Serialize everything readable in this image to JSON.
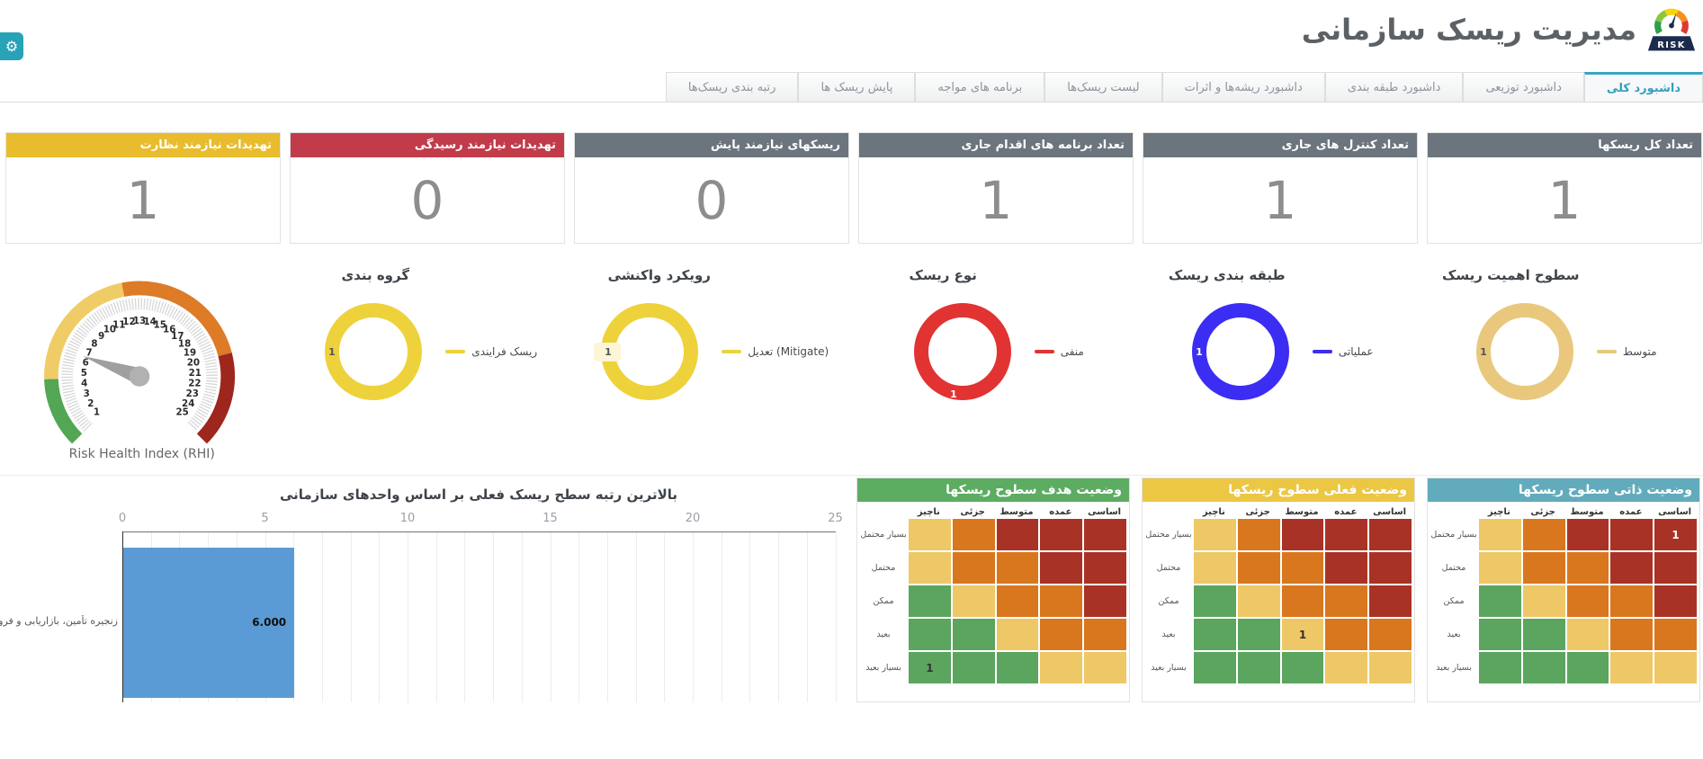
{
  "app": {
    "title": "مدیریت ریسک سازمانی",
    "logo_text": "RISK"
  },
  "icons": {
    "settings": "⚙"
  },
  "tabs": [
    {
      "label": "داشبورد کلی",
      "active": true
    },
    {
      "label": "داشبورد توزیعی",
      "active": false
    },
    {
      "label": "داشبورد طبقه بندی",
      "active": false
    },
    {
      "label": "داشبورد ریشه‌ها و اثرات",
      "active": false
    },
    {
      "label": "لیست ریسک‌ها",
      "active": false
    },
    {
      "label": "برنامه های مواجه",
      "active": false
    },
    {
      "label": "پایش ریسک ها",
      "active": false
    },
    {
      "label": "رتبه بندی ریسک‌ها",
      "active": false
    }
  ],
  "kpis": [
    {
      "label": "تعداد کل ریسکها",
      "value": "1",
      "header_color": "#6c757d"
    },
    {
      "label": "تعداد کنترل های جاری",
      "value": "1",
      "header_color": "#6c757d"
    },
    {
      "label": "تعداد برنامه های اقدام جاری",
      "value": "1",
      "header_color": "#6c757d"
    },
    {
      "label": "ریسکهای نیازمند پایش",
      "value": "0",
      "header_color": "#6c757d"
    },
    {
      "label": "تهدیدات نیازمند رسیدگی",
      "value": "0",
      "header_color": "#c23b4b"
    },
    {
      "label": "تهدیدات نیازمند نظارت",
      "value": "1",
      "header_color": "#e8bc2d"
    }
  ],
  "risk_charts": [
    {
      "type": "donut",
      "title": "سطوح اهمیت ریسک",
      "value": "1",
      "color": "#e9c87e",
      "legend": "متوسط",
      "value_pos": "left",
      "value_color": "#555555",
      "chip": false
    },
    {
      "type": "donut",
      "title": "طبقه بندی ریسک",
      "value": "1",
      "color": "#3b2ef2",
      "legend": "عملیاتی",
      "value_pos": "left",
      "value_color": "#ffffff",
      "chip": false
    },
    {
      "type": "donut",
      "title": "نوع ریسک",
      "value": "1",
      "color": "#e23333",
      "legend": "منفی",
      "value_pos": "bottom",
      "value_color": "#ffffff",
      "chip": false
    },
    {
      "type": "donut",
      "title": "رویکرد واکنشی",
      "value": "1",
      "color": "#eed23b",
      "legend": "تعدیل (Mitigate)",
      "value_pos": "left",
      "value_color": "#555555",
      "chip": true
    },
    {
      "type": "donut",
      "title": "گروه بندی",
      "value": "1",
      "color": "#eed23b",
      "legend": "ریسک فرایندی",
      "value_pos": "left",
      "value_color": "#555555",
      "chip": false
    }
  ],
  "gauge": {
    "label": "Risk Health Index (RHI)",
    "min": 1,
    "max": 25,
    "value": 6,
    "segments": [
      {
        "from": 0,
        "to": 4,
        "color": "#53a654"
      },
      {
        "from": 4,
        "to": 11.5,
        "color": "#f0cc66"
      },
      {
        "from": 11.5,
        "to": 19.5,
        "color": "#dd7b27"
      },
      {
        "from": 19.5,
        "to": 25,
        "color": "#9d271d"
      }
    ]
  },
  "bar_chart": {
    "type": "bar",
    "title": "بالاترین رتبه سطح ریسک فعلی بر اساس واحدهای سازمانی",
    "xticks": [
      0,
      5,
      10,
      15,
      20,
      25
    ],
    "xmax": 25,
    "bar": {
      "category": "زنجیره تأمین، بازاریابی و فروش",
      "value": 6,
      "label": "6.000"
    },
    "color": "#5b9bd5"
  },
  "heatmaps": {
    "columns": [
      "اساسی",
      "عمده",
      "متوسط",
      "جزئی",
      "ناچیز"
    ],
    "rows": [
      "بسیار محتمل",
      "محتمل",
      "ممکن",
      "بعید",
      "بسیار بعید"
    ],
    "palette": {
      "r": "#a93226",
      "o": "#d9771f",
      "y": "#eec866",
      "g": "#5ba55f"
    },
    "matrix": [
      [
        "r",
        "r",
        "r",
        "o",
        "y"
      ],
      [
        "r",
        "r",
        "o",
        "o",
        "y"
      ],
      [
        "r",
        "o",
        "o",
        "y",
        "g"
      ],
      [
        "o",
        "o",
        "y",
        "g",
        "g"
      ],
      [
        "y",
        "y",
        "g",
        "g",
        "g"
      ]
    ],
    "cards": [
      {
        "title": "وضعیت ذاتی سطوح ریسکها",
        "header_color": "#62abbc",
        "mark": {
          "row": 0,
          "col": 0,
          "value": "1",
          "color": "#ffffff"
        }
      },
      {
        "title": "وضعیت فعلی سطوح ریسکها",
        "header_color": "#ecc743",
        "mark": {
          "row": 3,
          "col": 2,
          "value": "1",
          "color": "#333333"
        }
      },
      {
        "title": "وضعیت هدف سطوح ریسکها",
        "header_color": "#5cac62",
        "mark": {
          "row": 4,
          "col": 4,
          "value": "1",
          "color": "#333333"
        }
      }
    ]
  }
}
